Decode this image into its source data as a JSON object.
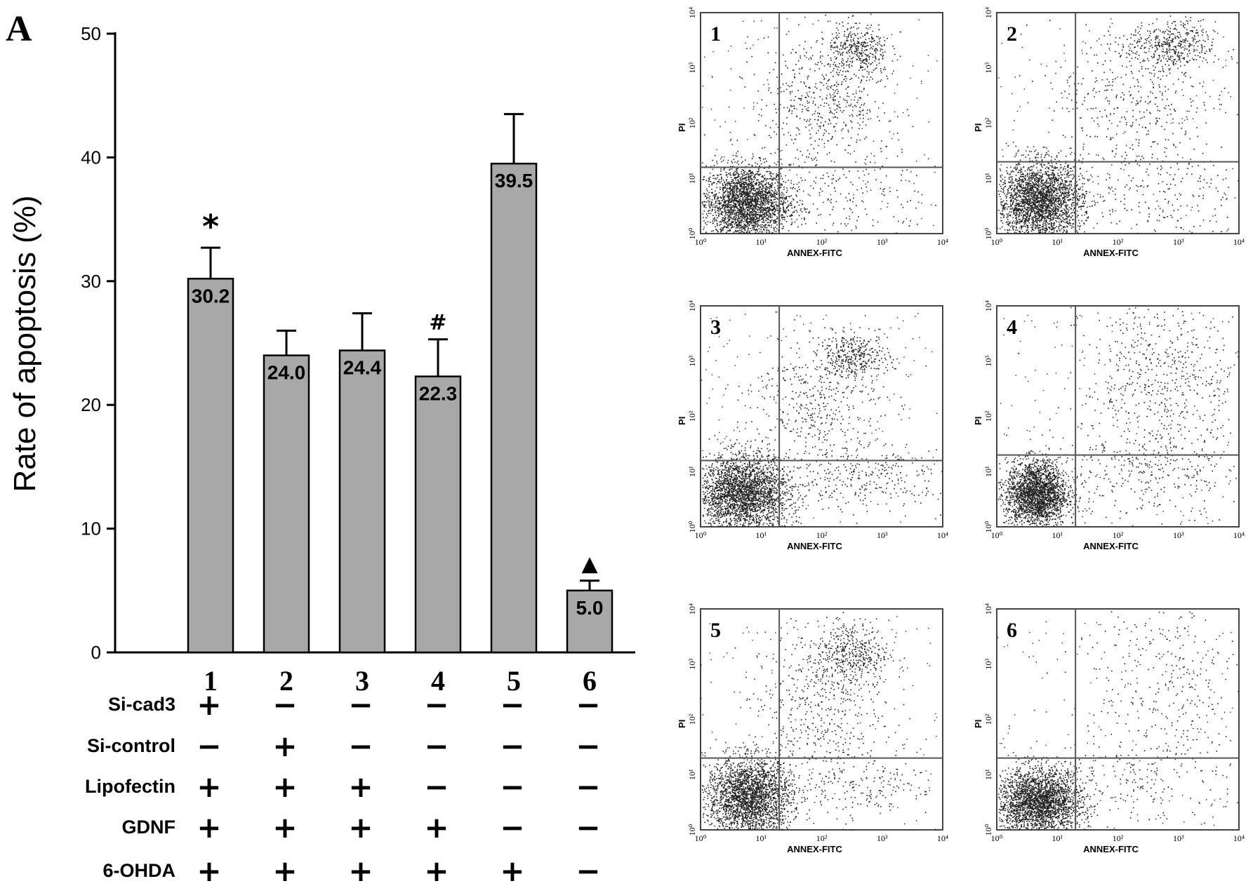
{
  "panel_label": "A",
  "chart_data": [
    {
      "type": "bar",
      "ylabel": "Rate of apoptosis (%)",
      "xlabel": "",
      "ylim": [
        0,
        50
      ],
      "yticks": [
        0,
        10,
        20,
        30,
        40,
        50
      ],
      "categories": [
        "1",
        "2",
        "3",
        "4",
        "5",
        "6"
      ],
      "values": [
        30.2,
        24.0,
        24.4,
        22.3,
        39.5,
        5.0
      ],
      "value_labels": [
        "30.2",
        "24.0",
        "24.4",
        "22.3",
        "39.5",
        "5.0"
      ],
      "error_upper": [
        32.7,
        26.0,
        27.4,
        25.3,
        43.5,
        5.8
      ],
      "annotations": [
        "*",
        "",
        "",
        "#",
        "",
        "▲"
      ],
      "bar_color": "#a8a8a8",
      "grid": false,
      "treatments": [
        {
          "label": "Si-cad3",
          "signs": [
            "+",
            "−",
            "−",
            "−",
            "−",
            "−"
          ]
        },
        {
          "label": "Si-control",
          "signs": [
            "−",
            "+",
            "−",
            "−",
            "−",
            "−"
          ]
        },
        {
          "label": "Lipofectin",
          "signs": [
            "+",
            "+",
            "+",
            "−",
            "−",
            "−"
          ]
        },
        {
          "label": "GDNF",
          "signs": [
            "+",
            "+",
            "+",
            "+",
            "−",
            "−"
          ]
        },
        {
          "label": "6-OHDA",
          "signs": [
            "+",
            "+",
            "+",
            "+",
            "+",
            "−"
          ]
        }
      ]
    },
    {
      "type": "scatter",
      "subtype": "flow-cytometry-quadrant-plots",
      "xlabel": "ANNEX-FITC",
      "ylabel": "PI",
      "x_tick_labels": [
        "10⁰",
        "10¹",
        "10²",
        "10³",
        "10⁴"
      ],
      "y_tick_labels": [
        "10⁰",
        "10¹",
        "10²",
        "10³",
        "10⁴"
      ],
      "panels": [
        {
          "label": "1",
          "gate_x": 1.3,
          "gate_y": 1.2,
          "clusters": [
            {
              "cx": 0.75,
              "cy": 0.55,
              "sx": 0.35,
              "sy": 0.35,
              "n": 2600
            },
            {
              "cx": 2.6,
              "cy": 3.3,
              "sx": 0.25,
              "sy": 0.25,
              "n": 380
            },
            {
              "cx": 2.0,
              "cy": 2.4,
              "sx": 0.55,
              "sy": 0.6,
              "n": 520
            },
            {
              "cx": 2.5,
              "cy": 0.7,
              "sx": 0.8,
              "sy": 0.4,
              "n": 200
            }
          ]
        },
        {
          "label": "2",
          "gate_x": 1.3,
          "gate_y": 1.3,
          "clusters": [
            {
              "cx": 0.7,
              "cy": 0.6,
              "sx": 0.35,
              "sy": 0.35,
              "n": 2600
            },
            {
              "cx": 2.9,
              "cy": 3.4,
              "sx": 0.35,
              "sy": 0.22,
              "n": 420
            },
            {
              "cx": 2.2,
              "cy": 2.5,
              "sx": 0.7,
              "sy": 0.7,
              "n": 380
            },
            {
              "cx": 2.7,
              "cy": 0.8,
              "sx": 0.8,
              "sy": 0.5,
              "n": 260
            }
          ]
        },
        {
          "label": "3",
          "gate_x": 1.3,
          "gate_y": 1.2,
          "clusters": [
            {
              "cx": 0.7,
              "cy": 0.6,
              "sx": 0.38,
              "sy": 0.35,
              "n": 2700
            },
            {
              "cx": 2.5,
              "cy": 3.1,
              "sx": 0.3,
              "sy": 0.2,
              "n": 380
            },
            {
              "cx": 1.9,
              "cy": 2.2,
              "sx": 0.55,
              "sy": 0.6,
              "n": 420
            },
            {
              "cx": 2.7,
              "cy": 0.9,
              "sx": 0.8,
              "sy": 0.3,
              "n": 300
            }
          ]
        },
        {
          "label": "4",
          "gate_x": 1.3,
          "gate_y": 1.3,
          "clusters": [
            {
              "cx": 0.65,
              "cy": 0.6,
              "sx": 0.25,
              "sy": 0.3,
              "n": 2300
            },
            {
              "cx": 2.8,
              "cy": 2.7,
              "sx": 0.7,
              "sy": 0.8,
              "n": 620
            },
            {
              "cx": 2.4,
              "cy": 1.0,
              "sx": 0.8,
              "sy": 0.4,
              "n": 300
            }
          ]
        },
        {
          "label": "5",
          "gate_x": 1.3,
          "gate_y": 1.3,
          "clusters": [
            {
              "cx": 0.8,
              "cy": 0.6,
              "sx": 0.35,
              "sy": 0.35,
              "n": 2500
            },
            {
              "cx": 2.5,
              "cy": 3.2,
              "sx": 0.3,
              "sy": 0.3,
              "n": 420
            },
            {
              "cx": 1.9,
              "cy": 2.3,
              "sx": 0.55,
              "sy": 0.65,
              "n": 420
            },
            {
              "cx": 2.7,
              "cy": 0.9,
              "sx": 0.6,
              "sy": 0.35,
              "n": 200
            }
          ]
        },
        {
          "label": "6",
          "gate_x": 1.3,
          "gate_y": 1.3,
          "clusters": [
            {
              "cx": 0.7,
              "cy": 0.5,
              "sx": 0.35,
              "sy": 0.3,
              "n": 2600
            },
            {
              "cx": 2.7,
              "cy": 2.7,
              "sx": 0.8,
              "sy": 0.85,
              "n": 330
            },
            {
              "cx": 2.5,
              "cy": 0.9,
              "sx": 0.8,
              "sy": 0.4,
              "n": 180
            }
          ]
        }
      ]
    }
  ]
}
